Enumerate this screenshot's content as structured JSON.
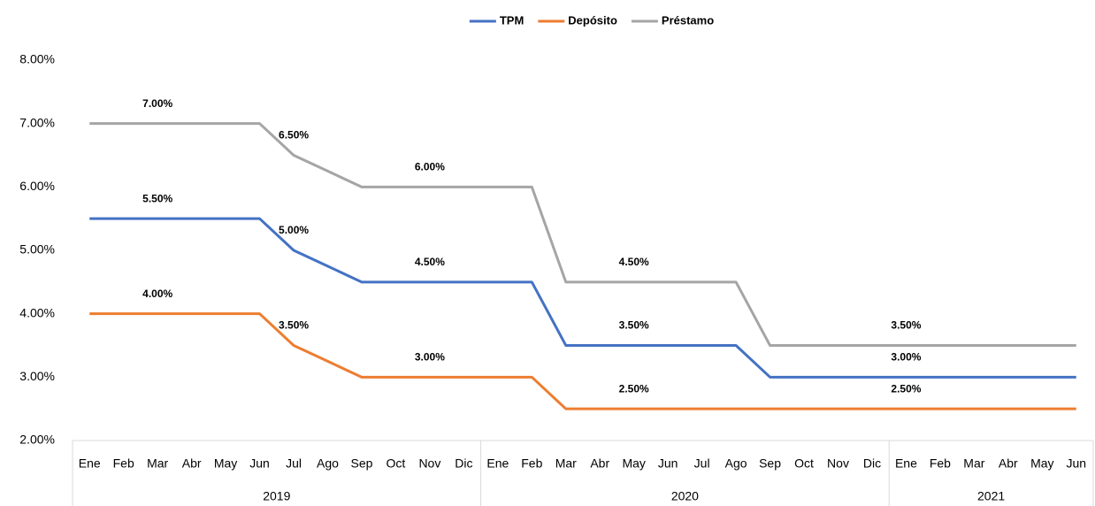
{
  "chart_data": {
    "type": "line",
    "categories": [
      "Ene",
      "Feb",
      "Mar",
      "Abr",
      "May",
      "Jun",
      "Jul",
      "Ago",
      "Sep",
      "Oct",
      "Nov",
      "Dic",
      "Ene",
      "Feb",
      "Mar",
      "Abr",
      "May",
      "Jun",
      "Jul",
      "Ago",
      "Sep",
      "Oct",
      "Nov",
      "Dic",
      "Ene",
      "Feb",
      "Mar",
      "Abr",
      "May",
      "Jun"
    ],
    "category_groups": [
      "2019",
      "2020",
      "2021"
    ],
    "series": [
      {
        "name": "TPM",
        "color": "#4472c4",
        "values": [
          5.5,
          5.5,
          5.5,
          5.5,
          5.5,
          5.5,
          5.0,
          4.75,
          4.5,
          4.5,
          4.5,
          4.5,
          4.5,
          4.5,
          3.5,
          3.5,
          3.5,
          3.5,
          3.5,
          3.5,
          3.0,
          3.0,
          3.0,
          3.0,
          3.0,
          3.0,
          3.0,
          3.0,
          3.0,
          3.0
        ],
        "value_labels": [
          null,
          null,
          "5.50%",
          null,
          null,
          null,
          "5.00%",
          null,
          null,
          null,
          "4.50%",
          null,
          null,
          null,
          null,
          null,
          "3.50%",
          null,
          null,
          null,
          null,
          null,
          null,
          null,
          "3.00%",
          null,
          null,
          null,
          null,
          null
        ]
      },
      {
        "name": "Depósito",
        "color": "#ed7d31",
        "values": [
          4.0,
          4.0,
          4.0,
          4.0,
          4.0,
          4.0,
          3.5,
          3.25,
          3.0,
          3.0,
          3.0,
          3.0,
          3.0,
          3.0,
          2.5,
          2.5,
          2.5,
          2.5,
          2.5,
          2.5,
          2.5,
          2.5,
          2.5,
          2.5,
          2.5,
          2.5,
          2.5,
          2.5,
          2.5,
          2.5
        ],
        "value_labels": [
          null,
          null,
          "4.00%",
          null,
          null,
          null,
          "3.50%",
          null,
          null,
          null,
          "3.00%",
          null,
          null,
          null,
          null,
          null,
          "2.50%",
          null,
          null,
          null,
          null,
          null,
          null,
          null,
          "2.50%",
          null,
          null,
          null,
          null,
          null
        ]
      },
      {
        "name": "Préstamo",
        "color": "#a5a5a5",
        "values": [
          7.0,
          7.0,
          7.0,
          7.0,
          7.0,
          7.0,
          6.5,
          6.25,
          6.0,
          6.0,
          6.0,
          6.0,
          6.0,
          6.0,
          4.5,
          4.5,
          4.5,
          4.5,
          4.5,
          4.5,
          3.5,
          3.5,
          3.5,
          3.5,
          3.5,
          3.5,
          3.5,
          3.5,
          3.5,
          3.5
        ],
        "value_labels": [
          null,
          null,
          "7.00%",
          null,
          null,
          null,
          "6.50%",
          null,
          null,
          null,
          "6.00%",
          null,
          null,
          null,
          null,
          null,
          "4.50%",
          null,
          null,
          null,
          null,
          null,
          null,
          null,
          "3.50%",
          null,
          null,
          null,
          null,
          null
        ]
      }
    ],
    "ylim": [
      2,
      8
    ],
    "yticks": [
      {
        "value": 2,
        "label": "2.00%"
      },
      {
        "value": 3,
        "label": "3.00%"
      },
      {
        "value": 4,
        "label": "4.00%"
      },
      {
        "value": 5,
        "label": "5.00%"
      },
      {
        "value": 6,
        "label": "6.00%"
      },
      {
        "value": 7,
        "label": "7.00%"
      },
      {
        "value": 8,
        "label": "8.00%"
      }
    ],
    "grid": false,
    "legend": "top"
  }
}
